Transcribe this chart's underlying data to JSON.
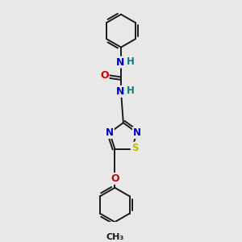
{
  "bg_color": "#e8e8e8",
  "bond_color": "#1a1a1a",
  "atom_colors": {
    "N": "#0000cc",
    "O": "#cc0000",
    "S": "#bbbb00",
    "H": "#008080",
    "C": "#1a1a1a"
  },
  "figsize": [
    3.0,
    3.0
  ],
  "dpi": 100
}
